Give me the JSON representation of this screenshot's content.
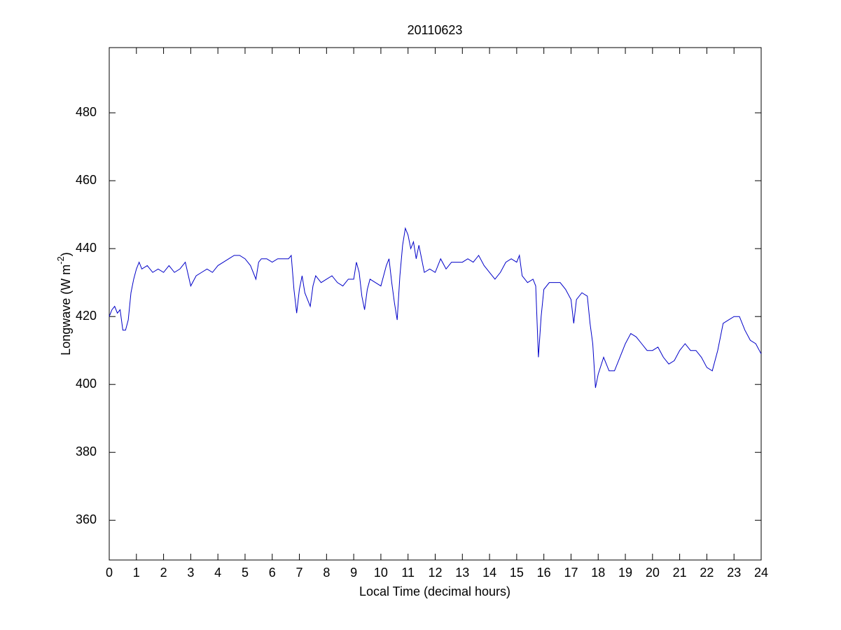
{
  "chart_data": {
    "type": "line",
    "title": "20110623",
    "x_label": "Local Time (decimal hours)",
    "y_label": [
      "Longwave (W m",
      "-2",
      ")"
    ],
    "color": "#0000c8",
    "xlim": [
      0,
      24
    ],
    "ylim": [
      348.3,
      499.2
    ],
    "xticks": [
      0,
      1,
      2,
      3,
      4,
      5,
      6,
      7,
      8,
      9,
      10,
      11,
      12,
      13,
      14,
      15,
      16,
      17,
      18,
      19,
      20,
      21,
      22,
      23,
      24
    ],
    "yticks": [
      360,
      380,
      400,
      420,
      440,
      460,
      480
    ],
    "grid": false,
    "x": [
      0,
      0.1,
      0.2,
      0.3,
      0.4,
      0.5,
      0.6,
      0.7,
      0.8,
      0.9,
      1.0,
      1.1,
      1.2,
      1.4,
      1.6,
      1.8,
      2.0,
      2.2,
      2.4,
      2.6,
      2.8,
      3.0,
      3.2,
      3.4,
      3.6,
      3.8,
      4.0,
      4.2,
      4.4,
      4.6,
      4.8,
      5.0,
      5.2,
      5.4,
      5.5,
      5.6,
      5.8,
      6.0,
      6.2,
      6.4,
      6.6,
      6.7,
      6.8,
      6.9,
      7.0,
      7.1,
      7.2,
      7.4,
      7.5,
      7.6,
      7.8,
      8.0,
      8.2,
      8.4,
      8.6,
      8.8,
      9.0,
      9.1,
      9.2,
      9.3,
      9.4,
      9.5,
      9.6,
      9.8,
      10.0,
      10.2,
      10.3,
      10.4,
      10.5,
      10.6,
      10.7,
      10.8,
      10.9,
      11.0,
      11.1,
      11.2,
      11.3,
      11.4,
      11.5,
      11.6,
      11.8,
      12.0,
      12.2,
      12.4,
      12.6,
      12.8,
      13.0,
      13.2,
      13.4,
      13.6,
      13.8,
      14.0,
      14.2,
      14.4,
      14.6,
      14.8,
      15.0,
      15.1,
      15.2,
      15.4,
      15.6,
      15.7,
      15.8,
      15.9,
      16.0,
      16.2,
      16.4,
      16.6,
      16.8,
      17.0,
      17.1,
      17.2,
      17.4,
      17.6,
      17.7,
      17.8,
      17.9,
      18.0,
      18.2,
      18.4,
      18.6,
      18.8,
      19.0,
      19.2,
      19.4,
      19.6,
      19.8,
      20.0,
      20.2,
      20.4,
      20.6,
      20.8,
      21.0,
      21.2,
      21.4,
      21.6,
      21.8,
      22.0,
      22.2,
      22.4,
      22.6,
      22.8,
      23.0,
      23.2,
      23.4,
      23.6,
      23.8,
      24.0
    ],
    "values": [
      420,
      422,
      423,
      421,
      422,
      416,
      416,
      419,
      427,
      431,
      434,
      436,
      434,
      435,
      433,
      434,
      433,
      435,
      433,
      434,
      436,
      429,
      432,
      433,
      434,
      433,
      435,
      436,
      437,
      438,
      438,
      437,
      435,
      431,
      436,
      437,
      437,
      436,
      437,
      437,
      437,
      438,
      428,
      421,
      428,
      432,
      427,
      423,
      429,
      432,
      430,
      431,
      432,
      430,
      429,
      431,
      431,
      436,
      433,
      426,
      422,
      428,
      431,
      430,
      429,
      435,
      437,
      430,
      424,
      419,
      432,
      441,
      446,
      444,
      440,
      442,
      437,
      441,
      437,
      433,
      434,
      433,
      437,
      434,
      436,
      436,
      436,
      437,
      436,
      438,
      435,
      433,
      431,
      433,
      436,
      437,
      436,
      438,
      432,
      430,
      431,
      429,
      408,
      420,
      428,
      430,
      430,
      430,
      428,
      425,
      418,
      425,
      427,
      426,
      418,
      412,
      399,
      403,
      408,
      404,
      404,
      408,
      412,
      415,
      414,
      412,
      410,
      410,
      411,
      408,
      406,
      407,
      410,
      412,
      410,
      410,
      408,
      405,
      404,
      410,
      418,
      419,
      420,
      420,
      416,
      413,
      412,
      409
    ]
  }
}
